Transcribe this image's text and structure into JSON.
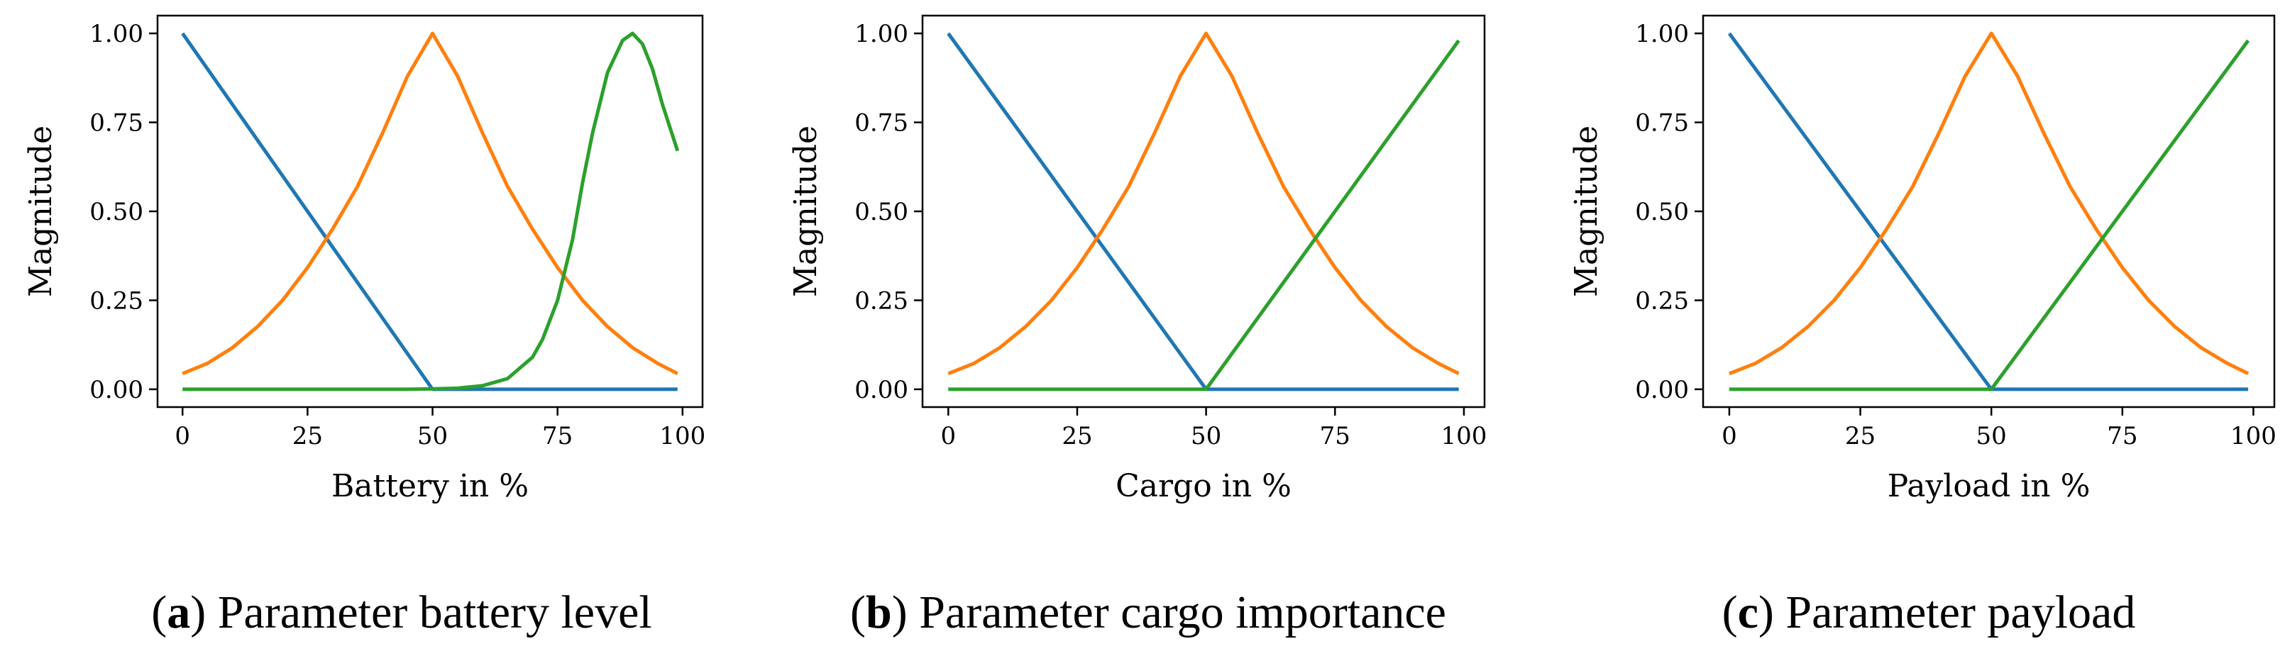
{
  "chart_data": [
    {
      "type": "line",
      "caption": {
        "letter": "a",
        "text": "Parameter battery level"
      },
      "xlabel": "Battery in %",
      "ylabel": "Magnitude",
      "xlim": [
        -5,
        104
      ],
      "ylim": [
        -0.05,
        1.05
      ],
      "xticks": [
        0,
        25,
        50,
        75,
        100
      ],
      "yticks": [
        0.0,
        0.25,
        0.5,
        0.75,
        1.0
      ],
      "xtick_labels": [
        "0",
        "25",
        "50",
        "75",
        "100"
      ],
      "ytick_labels": [
        "0.00",
        "0.25",
        "0.50",
        "0.75",
        "1.00"
      ],
      "grid": false,
      "series": [
        {
          "color": "#1f77b4",
          "x": [
            0,
            50,
            99
          ],
          "y": [
            1.0,
            0.0,
            0.0
          ]
        },
        {
          "color": "#ff7f0e",
          "x": [
            0,
            5,
            10,
            15,
            20,
            25,
            30,
            35,
            40,
            45,
            50,
            55,
            60,
            65,
            70,
            75,
            80,
            85,
            90,
            95,
            99
          ],
          "y": [
            0.044,
            0.073,
            0.117,
            0.176,
            0.25,
            0.342,
            0.45,
            0.57,
            0.72,
            0.88,
            1.0,
            0.88,
            0.72,
            0.57,
            0.45,
            0.342,
            0.25,
            0.176,
            0.117,
            0.073,
            0.044
          ]
        },
        {
          "color": "#2ca02c",
          "x": [
            0,
            45,
            50,
            55,
            60,
            65,
            70,
            72,
            75,
            78,
            80,
            82,
            85,
            88,
            90,
            92,
            94,
            96,
            99
          ],
          "y": [
            0.0,
            0.0,
            0.001,
            0.003,
            0.01,
            0.03,
            0.09,
            0.14,
            0.25,
            0.42,
            0.58,
            0.72,
            0.89,
            0.98,
            1.0,
            0.97,
            0.9,
            0.8,
            0.67
          ]
        }
      ]
    },
    {
      "type": "line",
      "caption": {
        "letter": "b",
        "text": "Parameter cargo importance"
      },
      "xlabel": "Cargo in %",
      "ylabel": "Magnitude",
      "xlim": [
        -5,
        104
      ],
      "ylim": [
        -0.05,
        1.05
      ],
      "xticks": [
        0,
        25,
        50,
        75,
        100
      ],
      "yticks": [
        0.0,
        0.25,
        0.5,
        0.75,
        1.0
      ],
      "xtick_labels": [
        "0",
        "25",
        "50",
        "75",
        "100"
      ],
      "ytick_labels": [
        "0.00",
        "0.25",
        "0.50",
        "0.75",
        "1.00"
      ],
      "grid": false,
      "series": [
        {
          "color": "#1f77b4",
          "x": [
            0,
            50,
            99
          ],
          "y": [
            1.0,
            0.0,
            0.0
          ]
        },
        {
          "color": "#ff7f0e",
          "x": [
            0,
            5,
            10,
            15,
            20,
            25,
            30,
            35,
            40,
            45,
            50,
            55,
            60,
            65,
            70,
            75,
            80,
            85,
            90,
            95,
            99
          ],
          "y": [
            0.044,
            0.073,
            0.117,
            0.176,
            0.25,
            0.342,
            0.45,
            0.57,
            0.72,
            0.88,
            1.0,
            0.88,
            0.72,
            0.57,
            0.45,
            0.342,
            0.25,
            0.176,
            0.117,
            0.073,
            0.044
          ]
        },
        {
          "color": "#2ca02c",
          "x": [
            0,
            50,
            99
          ],
          "y": [
            0.0,
            0.0,
            0.98
          ]
        }
      ]
    },
    {
      "type": "line",
      "caption": {
        "letter": "c",
        "text": "Parameter payload"
      },
      "xlabel": "Payload in %",
      "ylabel": "Magnitude",
      "xlim": [
        -5,
        104
      ],
      "ylim": [
        -0.05,
        1.05
      ],
      "xticks": [
        0,
        25,
        50,
        75,
        100
      ],
      "yticks": [
        0.0,
        0.25,
        0.5,
        0.75,
        1.0
      ],
      "xtick_labels": [
        "0",
        "25",
        "50",
        "75",
        "100"
      ],
      "ytick_labels": [
        "0.00",
        "0.25",
        "0.50",
        "0.75",
        "1.00"
      ],
      "grid": false,
      "series": [
        {
          "color": "#1f77b4",
          "x": [
            0,
            50,
            99
          ],
          "y": [
            1.0,
            0.0,
            0.0
          ]
        },
        {
          "color": "#ff7f0e",
          "x": [
            0,
            5,
            10,
            15,
            20,
            25,
            30,
            35,
            40,
            45,
            50,
            55,
            60,
            65,
            70,
            75,
            80,
            85,
            90,
            95,
            99
          ],
          "y": [
            0.044,
            0.073,
            0.117,
            0.176,
            0.25,
            0.342,
            0.45,
            0.57,
            0.72,
            0.88,
            1.0,
            0.88,
            0.72,
            0.57,
            0.45,
            0.342,
            0.25,
            0.176,
            0.117,
            0.073,
            0.044
          ]
        },
        {
          "color": "#2ca02c",
          "x": [
            0,
            50,
            99
          ],
          "y": [
            0.0,
            0.0,
            0.98
          ]
        }
      ]
    }
  ]
}
